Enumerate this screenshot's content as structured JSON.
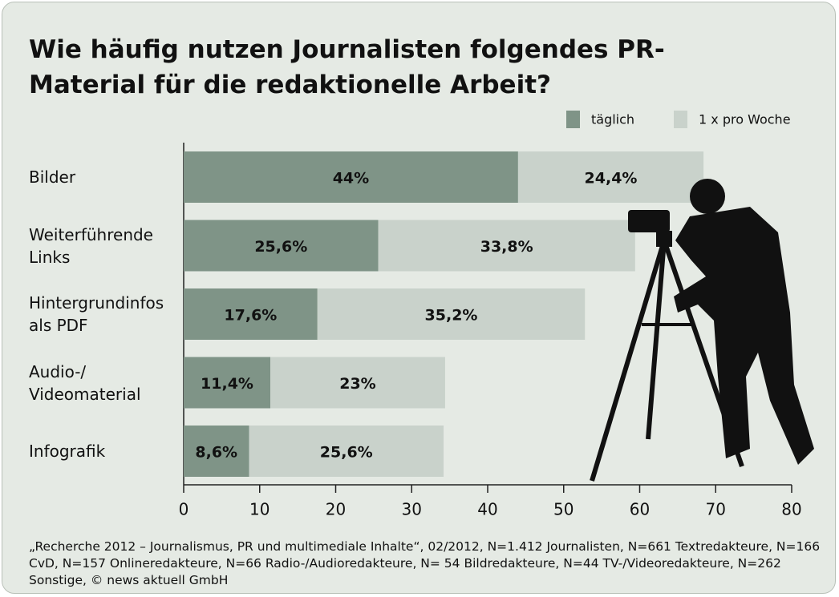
{
  "chart_data": {
    "type": "stacked_bar_horizontal",
    "title": "Wie häufig nutzen Journalisten folgendes PR-Material für die redaktionelle Arbeit?",
    "categories": [
      "Bilder",
      "Weiterführende Links",
      "Hintergrundinfos als PDF",
      "Audio-/ Videomaterial",
      "Infografik"
    ],
    "series": [
      {
        "name": "täglich",
        "color": "#7f9487",
        "values": [
          44,
          25.6,
          17.6,
          11.4,
          8.6
        ],
        "value_labels": [
          "44%",
          "25,6%",
          "17,6%",
          "11,4%",
          "8,6%"
        ]
      },
      {
        "name": "1 x pro Woche",
        "color": "#c9d2cb",
        "values": [
          24.4,
          33.8,
          35.2,
          23,
          25.6
        ],
        "value_labels": [
          "24,4%",
          "33,8%",
          "35,2%",
          "23%",
          "25,6%"
        ]
      }
    ],
    "xlim": [
      0,
      80
    ],
    "xticks": [
      0,
      10,
      20,
      30,
      40,
      50,
      60,
      70,
      80
    ],
    "source": "„Recherche 2012 – Journalismus, PR und multimediale Inhalte“, 02/2012, N=1.412 Journalisten, N=661 Textredakteure, N=166 CvD, N=157 Onlineredakteure, N=66 Radio-/Audioredakteure, N= 54 Bildredakteure, N=44 TV-/Videoredakteure, N=262 Sonstige, © news aktuell GmbH"
  }
}
